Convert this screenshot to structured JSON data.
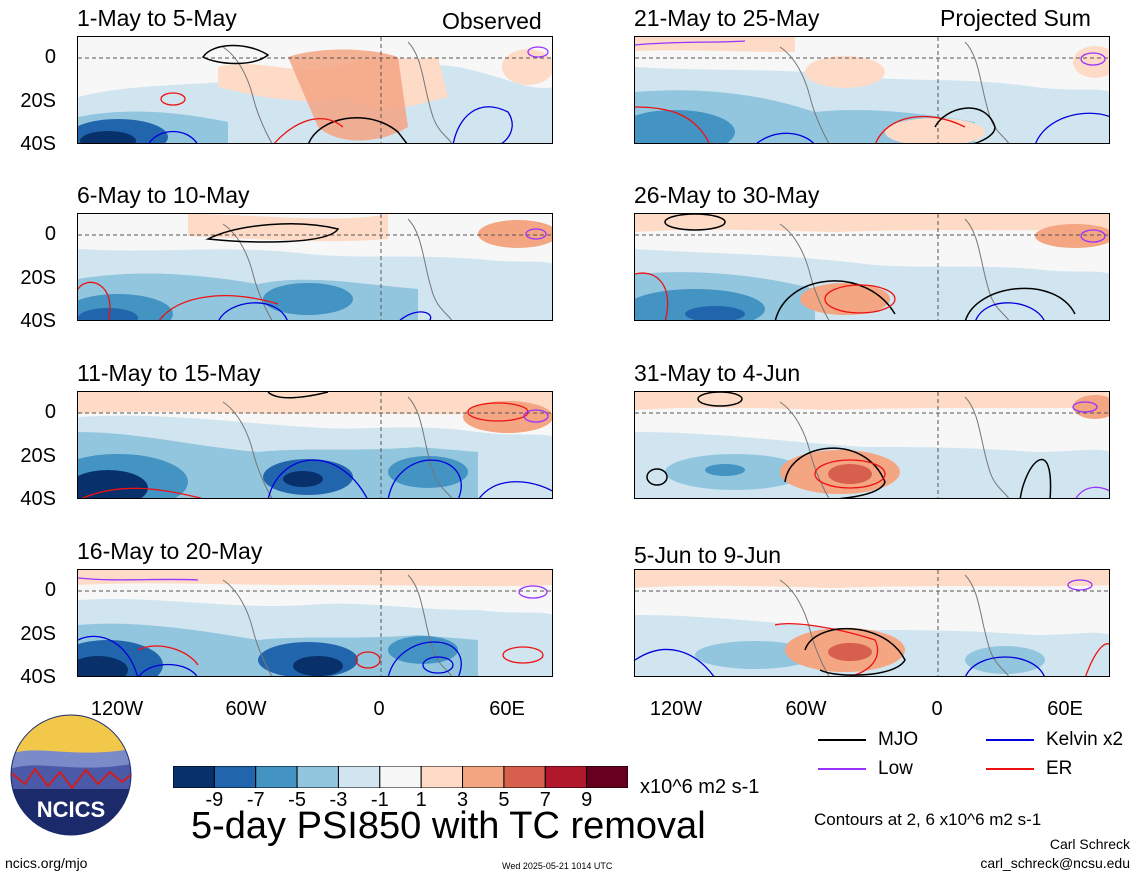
{
  "observed_label": "Observed",
  "projected_label": "Projected Sum",
  "panels_left": [
    {
      "title": "1-May to 5-May"
    },
    {
      "title": "6-May to 10-May"
    },
    {
      "title": "11-May to 15-May"
    },
    {
      "title": "16-May to 20-May"
    }
  ],
  "panels_right": [
    {
      "title": "21-May to 25-May"
    },
    {
      "title": "26-May to 30-May"
    },
    {
      "title": "31-May to 4-Jun"
    },
    {
      "title": "5-Jun to 9-Jun"
    }
  ],
  "lat_labels": [
    "0",
    "20S",
    "40S"
  ],
  "lon_labels": [
    "120W",
    "60W",
    "0",
    "60E"
  ],
  "colorbar": {
    "ticks": [
      "-9",
      "-7",
      "-5",
      "-3",
      "-1",
      "1",
      "3",
      "5",
      "7",
      "9"
    ],
    "colors": [
      "#08306b",
      "#2166ac",
      "#4393c3",
      "#92c5de",
      "#d1e5f0",
      "#f7f7f7",
      "#fddbc7",
      "#f4a582",
      "#d6604d",
      "#b2182b",
      "#67001f"
    ],
    "units": "x10^6 m2 s-1"
  },
  "main_title": "5-day PSI850 with TC removal",
  "legend": [
    {
      "label": "MJO",
      "color": "#000000"
    },
    {
      "label": "Kelvin x2",
      "color": "#0000dd"
    },
    {
      "label": "Low",
      "color": "#9933ff"
    },
    {
      "label": "ER",
      "color": "#ee1111"
    }
  ],
  "contour_note": "Contours at 2, 6 x10^6 m2 s-1",
  "author": "Carl Schreck",
  "email": "carl_schreck@ncsu.edu",
  "website": "ncics.org/mjo",
  "timestamp": "Wed 2025-05-21 1014 UTC",
  "logo_text": "NCICS"
}
